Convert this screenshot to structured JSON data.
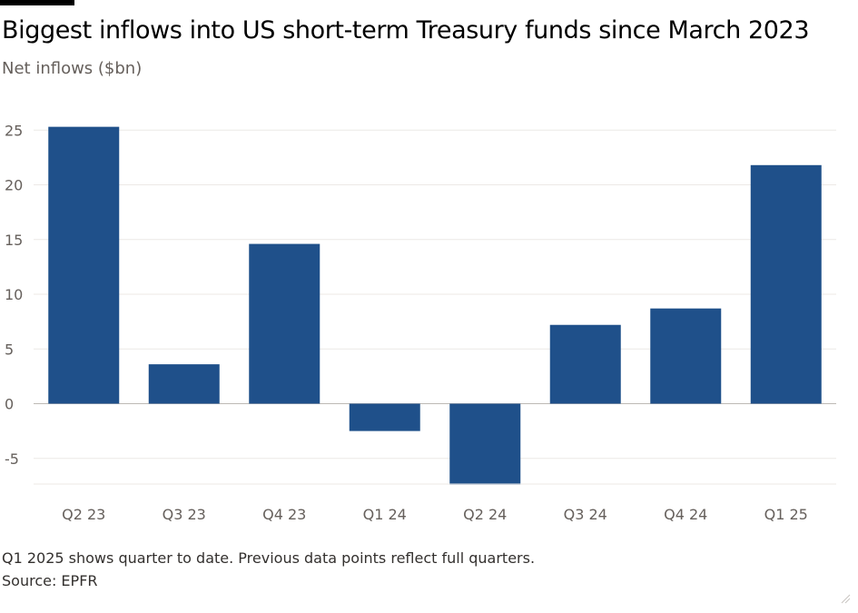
{
  "chart_data": {
    "type": "bar",
    "title": "Biggest inflows into US short-term Treasury funds since March 2023",
    "subtitle": "Net inflows ($bn)",
    "xlabel": "",
    "ylabel": "",
    "categories": [
      "Q2 23",
      "Q3 23",
      "Q4 23",
      "Q1 24",
      "Q2 24",
      "Q3 24",
      "Q4 24",
      "Q1 25"
    ],
    "values": [
      25.3,
      3.6,
      14.6,
      -2.5,
      -7.4,
      7.2,
      8.7,
      21.8
    ],
    "yticks": [
      -5,
      0,
      5,
      10,
      15,
      20,
      25
    ],
    "ytick_labels": [
      "-5",
      "0",
      "5",
      "10",
      "15",
      "20",
      "25"
    ],
    "ylim": [
      -7.4,
      25.3
    ],
    "grid": true,
    "legend": "none",
    "bar_color": "#1f508a"
  },
  "notes": {
    "footnote": "Q1 2025 shows quarter to date. Previous data points reflect full quarters.",
    "source": "Source: EPFR"
  }
}
